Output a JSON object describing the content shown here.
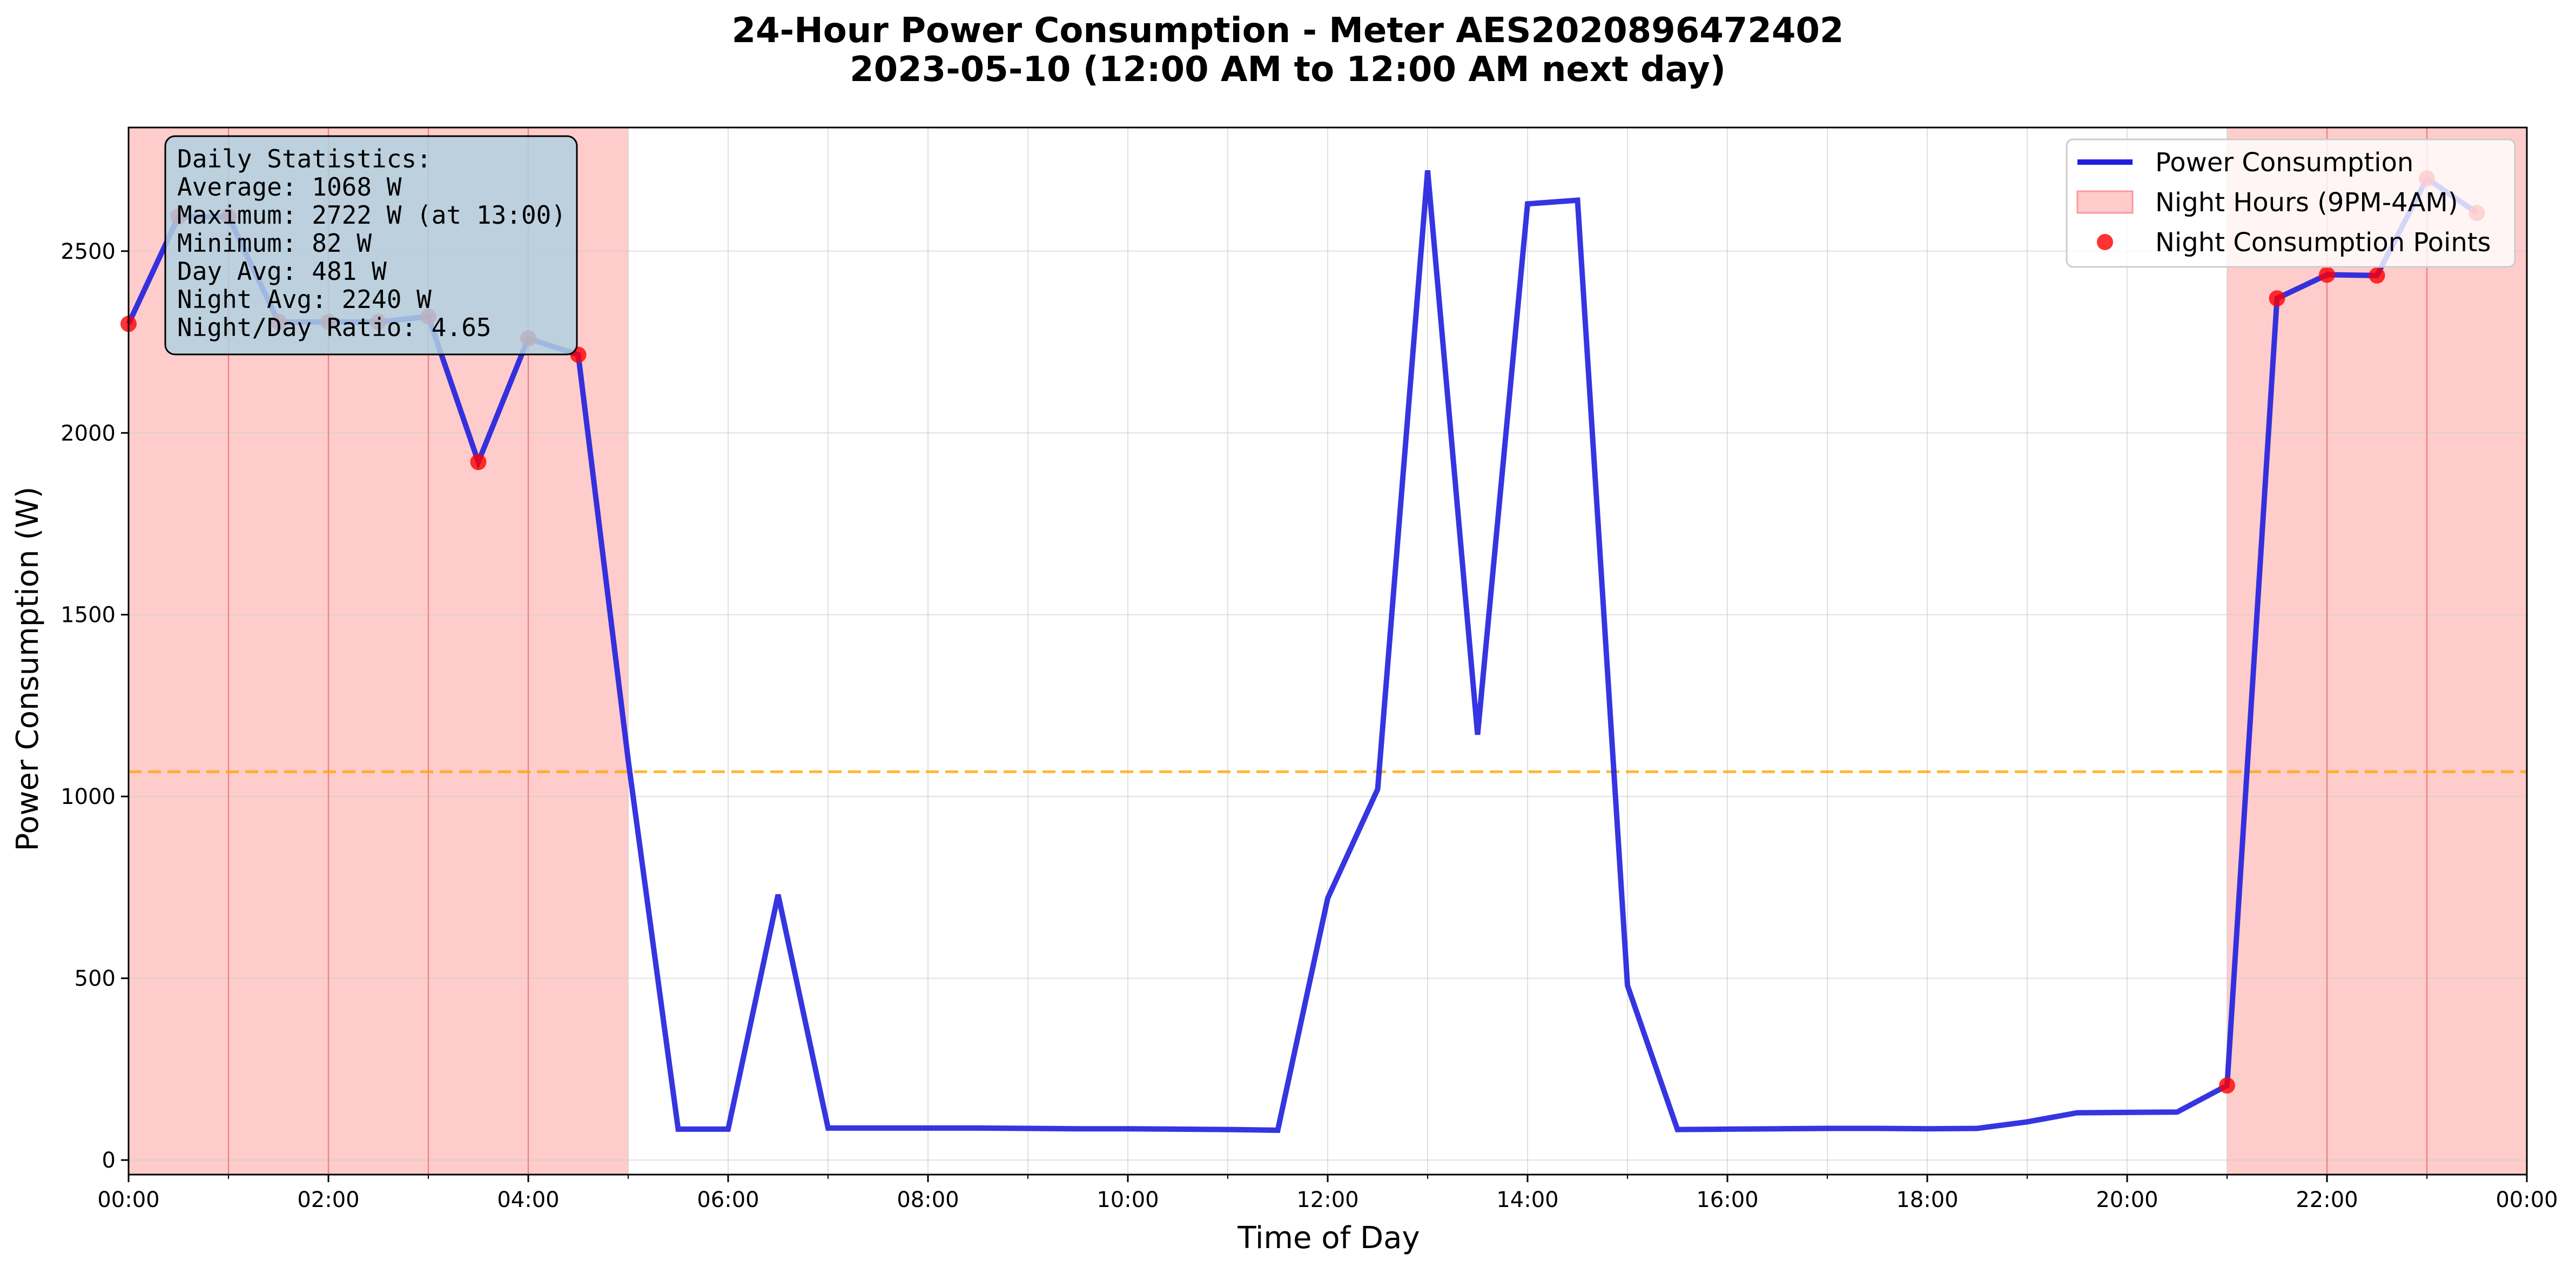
{
  "chart_data": {
    "type": "line",
    "title_line1": "24-Hour Power Consumption - Meter AES2020896472402",
    "title_line2": "2023-05-10 (12:00 AM to 12:00 AM next day)",
    "xlabel": "Time of Day",
    "ylabel": "Power Consumption (W)",
    "x_ticks": [
      "00:00",
      "02:00",
      "04:00",
      "06:00",
      "08:00",
      "10:00",
      "12:00",
      "14:00",
      "16:00",
      "18:00",
      "20:00",
      "22:00",
      "00:00"
    ],
    "y_ticks": [
      0,
      500,
      1000,
      1500,
      2000,
      2500
    ],
    "xlim": [
      0,
      24
    ],
    "ylim": [
      -40,
      2840
    ],
    "grid": true,
    "average_line": {
      "value": 1068,
      "color": "#ffa500",
      "style": "dashed"
    },
    "night_shading": [
      [
        0,
        5
      ],
      [
        21,
        24
      ]
    ],
    "night_color": "#ff9999",
    "series": [
      {
        "name": "Power Consumption",
        "color": "#1f1fdf",
        "x": [
          0,
          0.5,
          1,
          1.5,
          2,
          2.5,
          3,
          3.5,
          4,
          4.5,
          5,
          5.5,
          6,
          6.5,
          7,
          7.5,
          8,
          8.5,
          9,
          9.5,
          10,
          10.5,
          11,
          11.5,
          12,
          12.5,
          13,
          13.5,
          14,
          14.5,
          15,
          15.5,
          16,
          16.5,
          17,
          17.5,
          18,
          18.5,
          19,
          19.5,
          20,
          20.5,
          21,
          21.5,
          22,
          22.5,
          23,
          23.5
        ],
        "y": [
          2300,
          2595,
          2595,
          2305,
          2305,
          2305,
          2320,
          1920,
          2260,
          2215,
          1100,
          85,
          85,
          730,
          88,
          88,
          88,
          88,
          87,
          86,
          86,
          85,
          84,
          82,
          720,
          1020,
          2722,
          1170,
          2630,
          2640,
          480,
          84,
          85,
          86,
          87,
          87,
          86,
          87,
          105,
          130,
          131,
          132,
          205,
          2370,
          2435,
          2433,
          2700,
          2605
        ]
      },
      {
        "name": "Night Consumption Points",
        "color": "#ff0000",
        "x": [
          0,
          0.5,
          1,
          1.5,
          2,
          2.5,
          3,
          3.5,
          4,
          4.5,
          21,
          21.5,
          22,
          22.5,
          23,
          23.5
        ],
        "y": [
          2300,
          2595,
          2595,
          2305,
          2305,
          2305,
          2320,
          1920,
          2260,
          2215,
          205,
          2370,
          2435,
          2433,
          2700,
          2605
        ]
      }
    ],
    "legend": {
      "placement": "upper-right",
      "entries": [
        "Power Consumption",
        "Night Hours (9PM-4AM)",
        "Night Consumption Points"
      ]
    },
    "stats_box": {
      "lines": [
        "Daily Statistics:",
        "Average: 1068 W",
        "Maximum: 2722 W (at 13:00)",
        "Minimum: 82 W",
        "Day Avg: 481 W",
        "Night Avg: 2240 W",
        "Night/Day Ratio: 4.65"
      ],
      "background": "#b0d0e0"
    }
  }
}
